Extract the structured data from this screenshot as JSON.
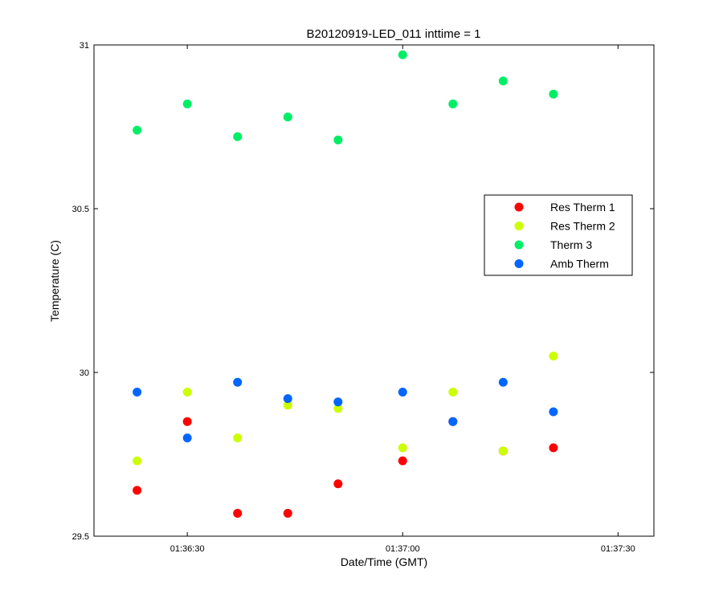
{
  "chart_data": {
    "type": "scatter",
    "title": "B20120919-LED_011 inttime = 1",
    "xlabel": "Date/Time (GMT)",
    "ylabel": "Temperature (C)",
    "xlim": [
      "01:36:17",
      "01:37:35"
    ],
    "ylim": [
      29.5,
      31
    ],
    "x_ticks": [
      "01:36:30",
      "01:37:00",
      "01:37:30"
    ],
    "y_ticks": [
      "29.5",
      "30",
      "30.5",
      "31"
    ],
    "x": [
      "01:36:23",
      "01:36:30",
      "01:36:37",
      "01:36:44",
      "01:36:51",
      "01:37:00",
      "01:37:07",
      "01:37:14",
      "01:37:21"
    ],
    "legend_position": "right",
    "grid": false,
    "series": [
      {
        "name": "Res Therm 1",
        "color": "#ff0000",
        "values": [
          29.64,
          29.85,
          29.57,
          29.57,
          29.66,
          29.73,
          29.85,
          29.76,
          29.77
        ]
      },
      {
        "name": "Res Therm 2",
        "color": "#ccff00",
        "values": [
          29.73,
          29.94,
          29.8,
          29.9,
          29.89,
          29.77,
          29.94,
          29.76,
          30.05
        ]
      },
      {
        "name": "Therm 3",
        "color": "#00ee66",
        "values": [
          30.74,
          30.82,
          30.72,
          30.78,
          30.71,
          30.97,
          30.82,
          30.89,
          30.85
        ]
      },
      {
        "name": "Amb Therm",
        "color": "#0066ff",
        "values": [
          29.94,
          29.8,
          29.97,
          29.92,
          29.91,
          29.94,
          29.85,
          29.97,
          29.88
        ]
      }
    ]
  }
}
